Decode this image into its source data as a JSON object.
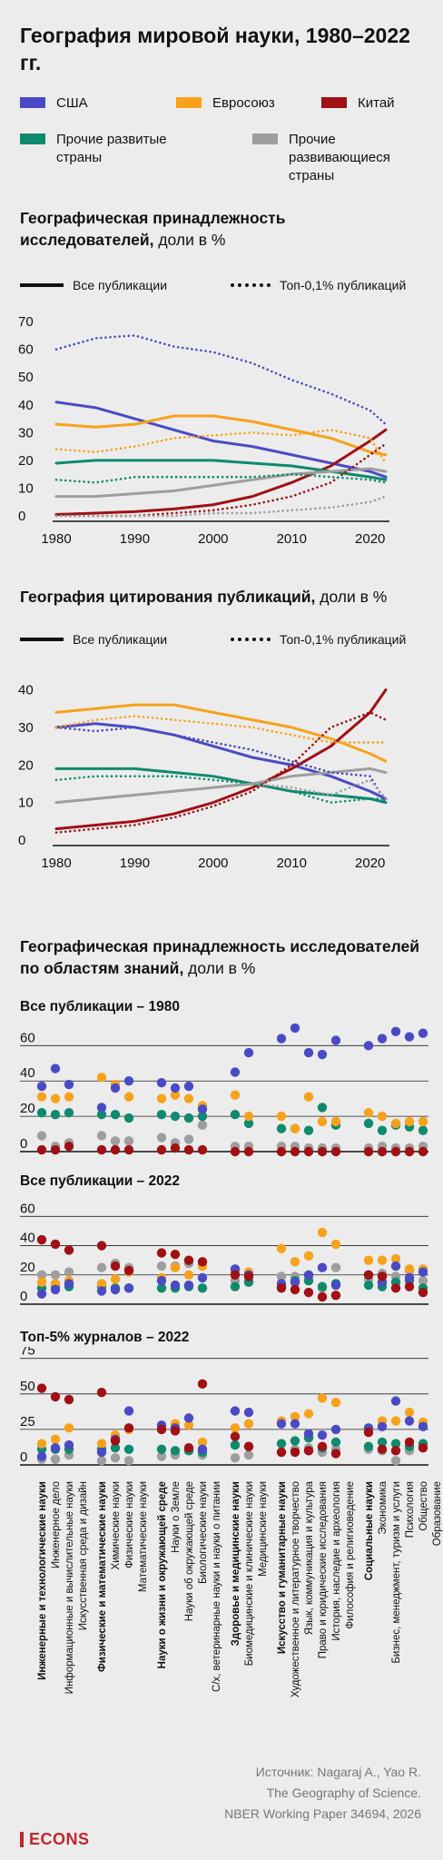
{
  "title": "География мировой науки, 1980–2022 гг.",
  "legend": [
    {
      "label": "США",
      "color": "#4a4bc4"
    },
    {
      "label": "Евросоюз",
      "color": "#f7a21b"
    },
    {
      "label": "Китай",
      "color": "#a01015"
    },
    {
      "label": "Прочие развитые страны",
      "color": "#0f8a6e"
    },
    {
      "label": "Прочие развивающиеся страны",
      "color": "#9e9e9e"
    }
  ],
  "legend_labels": {
    "all": "Все публикации",
    "top": "Топ-0,1% публикаций"
  },
  "sections": {
    "s1_title_bold": "Географическая принадлежность исследователей,",
    "s1_title_light": " доли в %",
    "s2_title_bold": "География цитирования публикаций,",
    "s2_title_light": " доли в %",
    "s3_title_bold": "Географическая принадлежность исследователей по областям знаний,",
    "s3_title_light": " доли в %"
  },
  "source": {
    "line1": "Источник: Nagaraj A., Yao R.",
    "line2": "The Geography of Science.",
    "line3": "NBER Working Paper 34694, 2026"
  },
  "logo": "ECONS",
  "chart_data": [
    {
      "type": "line",
      "title": "Географическая принадлежность исследователей, доли в %",
      "x": [
        1980,
        1985,
        1990,
        1995,
        2000,
        2005,
        2010,
        2015,
        2020,
        2022
      ],
      "xticks": [
        1980,
        1990,
        2000,
        2010,
        2020
      ],
      "yticks": [
        0,
        10,
        20,
        30,
        40,
        50,
        60,
        70
      ],
      "ylim": [
        0,
        72
      ],
      "series": [
        {
          "name": "США",
          "style": "solid",
          "color": "#4a4bc4",
          "values": [
            41,
            39,
            35,
            31,
            27,
            25,
            22,
            19,
            16,
            14
          ]
        },
        {
          "name": "Евросоюз",
          "style": "solid",
          "color": "#f7a21b",
          "values": [
            33,
            32,
            33,
            36,
            36,
            34,
            31,
            28,
            23,
            22
          ]
        },
        {
          "name": "Китай",
          "style": "solid",
          "color": "#a01015",
          "values": [
            0.5,
            1,
            1.5,
            2.5,
            4,
            7,
            12,
            18,
            27,
            31
          ]
        },
        {
          "name": "Прочие развитые страны",
          "style": "solid",
          "color": "#0f8a6e",
          "values": [
            19,
            20,
            20,
            20,
            20,
            19,
            18,
            16,
            14,
            13
          ]
        },
        {
          "name": "Прочие развивающиеся страны",
          "style": "solid",
          "color": "#9e9e9e",
          "values": [
            7,
            7,
            8,
            9,
            11,
            13,
            15,
            16,
            17,
            16
          ]
        },
        {
          "name": "США",
          "style": "dotted",
          "color": "#4a4bc4",
          "values": [
            60,
            64,
            65,
            61,
            59,
            55,
            49,
            44,
            38,
            33
          ]
        },
        {
          "name": "Евросоюз",
          "style": "dotted",
          "color": "#f7a21b",
          "values": [
            24,
            23,
            25,
            28,
            29,
            30,
            29,
            31,
            28,
            19
          ]
        },
        {
          "name": "Китай",
          "style": "dotted",
          "color": "#a01015",
          "values": [
            0,
            0,
            0,
            1,
            2,
            4,
            7,
            12,
            22,
            26
          ]
        },
        {
          "name": "Прочие развитые страны",
          "style": "dotted",
          "color": "#0f8a6e",
          "values": [
            13,
            12,
            14,
            14,
            14,
            14,
            15,
            14,
            13,
            12
          ]
        },
        {
          "name": "Прочие развивающиеся страны",
          "style": "dotted",
          "color": "#9e9e9e",
          "values": [
            0,
            0,
            0,
            0,
            1,
            1,
            2,
            3,
            5,
            7
          ]
        }
      ]
    },
    {
      "type": "line",
      "title": "География цитирования публикаций, доли в %",
      "x": [
        1980,
        1985,
        1990,
        1995,
        2000,
        2005,
        2010,
        2015,
        2020,
        2022
      ],
      "xticks": [
        1980,
        1990,
        2000,
        2010,
        2020
      ],
      "yticks": [
        0,
        10,
        20,
        30,
        40
      ],
      "ylim": [
        0,
        44
      ],
      "series": [
        {
          "name": "США",
          "style": "solid",
          "color": "#4a4bc4",
          "values": [
            30,
            31,
            30,
            28,
            25,
            22,
            20,
            17,
            13,
            11
          ]
        },
        {
          "name": "Евросоюз",
          "style": "solid",
          "color": "#f7a21b",
          "values": [
            34,
            35,
            36,
            36,
            34,
            32,
            30,
            27,
            23,
            21
          ]
        },
        {
          "name": "Китай",
          "style": "solid",
          "color": "#a01015",
          "values": [
            3,
            4,
            5,
            7,
            10,
            14,
            19,
            25,
            34,
            40
          ]
        },
        {
          "name": "Прочие развитые страны",
          "style": "solid",
          "color": "#0f8a6e",
          "values": [
            19,
            19,
            19,
            18,
            17,
            15,
            13,
            12,
            11,
            10
          ]
        },
        {
          "name": "Прочие развивающиеся страны",
          "style": "solid",
          "color": "#9e9e9e",
          "values": [
            10,
            11,
            12,
            13,
            14,
            15,
            17,
            18,
            19,
            18
          ]
        },
        {
          "name": "США",
          "style": "dotted",
          "color": "#4a4bc4",
          "values": [
            30,
            29,
            30,
            28,
            26,
            24,
            21,
            18,
            17,
            10
          ]
        },
        {
          "name": "Евросоюз",
          "style": "dotted",
          "color": "#f7a21b",
          "values": [
            30,
            32,
            33,
            32,
            31,
            30,
            28,
            26,
            26,
            26
          ]
        },
        {
          "name": "Китай",
          "style": "dotted",
          "color": "#a01015",
          "values": [
            2,
            3,
            4,
            6,
            9,
            13,
            20,
            30,
            34,
            32
          ]
        },
        {
          "name": "Прочие развитые страны",
          "style": "dotted",
          "color": "#0f8a6e",
          "values": [
            16,
            17,
            17,
            17,
            16,
            15,
            13,
            10,
            11,
            11
          ]
        },
        {
          "name": "Прочие развивающиеся страны",
          "style": "dotted",
          "color": "#9e9e9e",
          "values": [
            10,
            11,
            12,
            13,
            14,
            15,
            14,
            12,
            16,
            11
          ]
        }
      ]
    },
    {
      "type": "scatter",
      "title": "Географическая принадлежность исследователей по областям знаний, доли в %",
      "categories": [
        "Инженерные и технологические науки",
        "Инженерное дело",
        "Информационные и вычислительные науки",
        "Искусственная среда и дизайн",
        "Физические и математические науки",
        "Химические науки",
        "Физические науки",
        "Математические науки",
        "Науки о жизни и окружающей среде",
        "Науки о Земле",
        "Науки об окружающей среде",
        "Биологические науки",
        "С/х, ветеринарные науки и науки о питании",
        "Здоровье и медицинские науки",
        "Биомедицинские и клинические науки",
        "Медицинские науки",
        "Искусство и гуманитарные науки",
        "Художественное и литературное творчество",
        "Язык, коммуникация и культура",
        "Право и юридические исследования",
        "История, наследие и археология",
        "Философия и религиоведение",
        "Социальные науки",
        "Экономика",
        "Бизнес, менеджмент, туризм и услуги",
        "Психология",
        "Общество",
        "Образование"
      ],
      "bold_categories": [
        0,
        4,
        8,
        13,
        16,
        22
      ],
      "series_order": [
        "США",
        "Евросоюз",
        "Китай",
        "Прочие развитые страны",
        "Прочие развивающиеся страны"
      ],
      "panels": [
        {
          "title": "Все публикации – 1980",
          "yticks": [
            0,
            20,
            40,
            60
          ],
          "ylim": [
            0,
            72
          ],
          "points": [
            [
              37,
              31,
              1,
              22,
              9
            ],
            [
              47,
              30,
              1,
              21,
              3
            ],
            [
              38,
              31,
              3,
              22,
              5
            ],
            null,
            [
              25,
              42,
              1,
              21,
              9
            ],
            [
              36,
              38,
              1,
              21,
              6
            ],
            [
              40,
              31,
              1,
              19,
              6
            ],
            null,
            [
              39,
              30,
              1,
              21,
              8
            ],
            [
              36,
              32,
              2,
              20,
              5
            ],
            [
              37,
              30,
              1,
              19,
              7
            ],
            [
              24,
              26,
              1,
              20,
              15
            ],
            null,
            [
              45,
              32,
              0,
              21,
              3
            ],
            [
              56,
              20,
              0,
              16,
              3
            ],
            null,
            [
              64,
              20,
              0,
              13,
              3
            ],
            [
              70,
              13,
              0,
              13,
              3
            ],
            [
              56,
              31,
              0,
              12,
              2
            ],
            [
              55,
              17,
              0,
              25,
              2
            ],
            [
              63,
              17,
              0,
              15,
              2
            ],
            null,
            [
              60,
              22,
              0,
              16,
              2
            ],
            [
              64,
              20,
              0,
              12,
              3
            ],
            [
              68,
              16,
              0,
              15,
              2
            ],
            [
              65,
              17,
              0,
              14,
              2
            ],
            [
              67,
              17,
              0,
              12,
              3
            ],
            null
          ]
        },
        {
          "title": "Все публикации – 2022",
          "yticks": [
            0,
            20,
            40,
            60
          ],
          "ylim": [
            0,
            72
          ],
          "points": [
            [
              7,
              15,
              44,
              11,
              20
            ],
            [
              10,
              14,
              41,
              12,
              20
            ],
            [
              14,
              16,
              37,
              12,
              22
            ],
            null,
            [
              9,
              14,
              40,
              12,
              25
            ],
            [
              10,
              17,
              26,
              11,
              28
            ],
            [
              11,
              22,
              23,
              11,
              25
            ],
            null,
            [
              16,
              18,
              35,
              11,
              26
            ],
            [
              13,
              25,
              34,
              11,
              26
            ],
            [
              13,
              20,
              30,
              12,
              28
            ],
            [
              18,
              26,
              29,
              11,
              27
            ],
            null,
            [
              24,
              22,
              20,
              12,
              16
            ],
            [
              20,
              22,
              19,
              15,
              16
            ],
            null,
            [
              14,
              38,
              11,
              12,
              19
            ],
            [
              15,
              29,
              10,
              16,
              19
            ],
            [
              20,
              33,
              8,
              16,
              18
            ],
            [
              25,
              49,
              5,
              12,
              11
            ],
            [
              13,
              41,
              6,
              14,
              25
            ],
            null,
            [
              20,
              30,
              20,
              13,
              17
            ],
            [
              15,
              30,
              19,
              12,
              21
            ],
            [
              26,
              31,
              11,
              15,
              19
            ],
            [
              18,
              24,
              12,
              16,
              23
            ],
            [
              22,
              24,
              8,
              11,
              16
            ],
            null
          ]
        },
        {
          "title": "Топ-5% журналов – 2022",
          "yticks": [
            0,
            25,
            50,
            75
          ],
          "ylim": [
            0,
            78
          ],
          "points": [
            [
              6,
              15,
              54,
              11,
              4
            ],
            [
              12,
              18,
              48,
              11,
              4
            ],
            [
              14,
              26,
              46,
              11,
              7
            ],
            null,
            [
              9,
              15,
              51,
              11,
              3
            ],
            [
              18,
              21,
              17,
              12,
              5
            ],
            [
              38,
              25,
              26,
              11,
              3
            ],
            null,
            [
              28,
              27,
              25,
              11,
              6
            ],
            [
              26,
              29,
              24,
              10,
              7
            ],
            [
              33,
              28,
              12,
              10,
              10
            ],
            [
              11,
              16,
              57,
              9,
              7
            ],
            null,
            [
              38,
              26,
              20,
              14,
              5
            ],
            [
              37,
              29,
              13,
              13,
              7
            ],
            null,
            [
              29,
              31,
              9,
              15,
              9
            ],
            [
              29,
              34,
              9,
              17,
              11
            ],
            [
              22,
              36,
              10,
              19,
              12
            ],
            [
              21,
              47,
              13,
              12,
              9
            ],
            [
              25,
              44,
              8,
              16,
              11
            ],
            null,
            [
              26,
              23,
              23,
              13,
              11
            ],
            [
              27,
              31,
              11,
              16,
              10
            ],
            [
              45,
              31,
              10,
              15,
              3
            ],
            [
              31,
              37,
              16,
              13,
              10
            ],
            [
              27,
              30,
              12,
              15,
              13
            ],
            null
          ]
        }
      ]
    }
  ]
}
